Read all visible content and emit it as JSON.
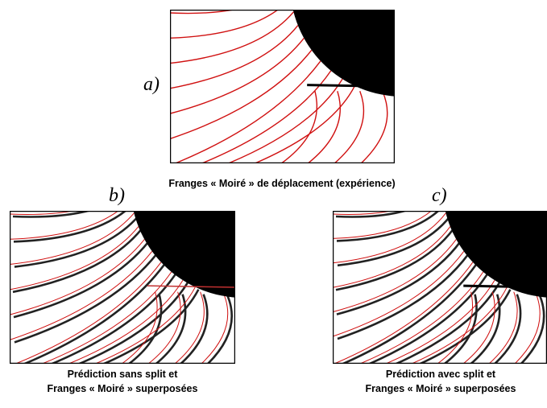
{
  "panels": [
    {
      "label": "a)",
      "caption": [
        "Franges « Moiré » de déplacement (expérience)"
      ]
    },
    {
      "label": "b)",
      "caption": [
        "Prédiction sans split et",
        "Franges « Moiré » superposées"
      ]
    },
    {
      "label": "c)",
      "caption": [
        "Prédiction avec split et",
        "Franges « Moiré » superposées"
      ]
    }
  ]
}
